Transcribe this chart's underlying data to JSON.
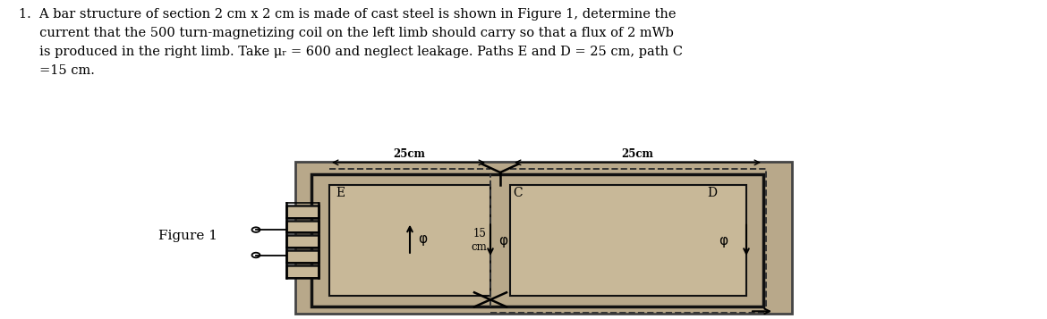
{
  "figure_label": "Figure 1",
  "dim_label_left": "25cm",
  "dim_label_right": "25cm",
  "path_label_E": "E",
  "path_label_C": "C",
  "path_label_D": "D",
  "bg_color": "#b8a88a",
  "inner_color": "#c8b898",
  "flux_symbol": "φ",
  "fig_bg": "#ffffff",
  "text_line1": "1.  A bar structure of section 2 cm x 2 cm is made of cast steel is shown in Figure 1, determine the",
  "text_line2": "     current that the 500 turn-magnetizing coil on the left limb should carry so that a flux of 2 mWb",
  "text_line3": "     is produced in the right limb. Take μᵣ = 600 and neglect leakage. Paths E and D = 25 cm, path C",
  "text_line4": "     =15 cm."
}
